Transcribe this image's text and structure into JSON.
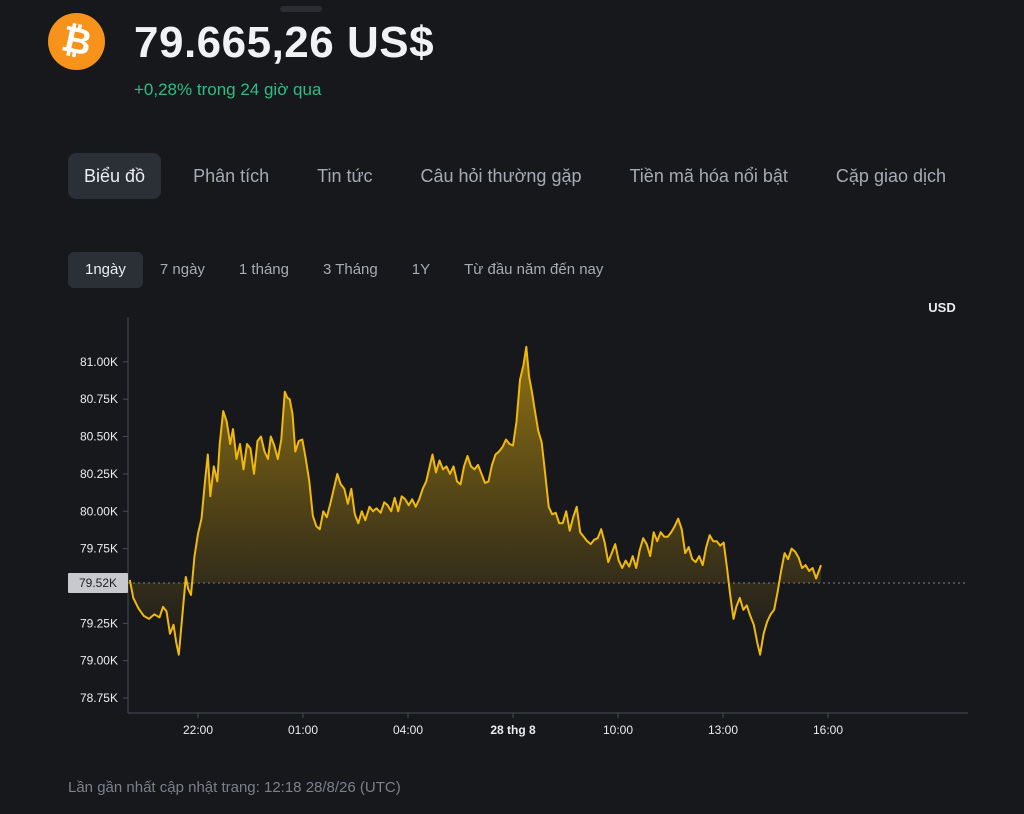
{
  "header": {
    "coin_symbol_glyph": "₿",
    "price": "79.665,26 US$",
    "change": "+0,28% trong 24 giờ qua"
  },
  "tabs": [
    {
      "label": "Biểu đồ",
      "active": true
    },
    {
      "label": "Phân tích",
      "active": false
    },
    {
      "label": "Tin tức",
      "active": false
    },
    {
      "label": "Câu hỏi thường gặp",
      "active": false
    },
    {
      "label": "Tiền mã hóa nổi bật",
      "active": false
    },
    {
      "label": "Cặp giao dịch",
      "active": false
    }
  ],
  "ranges": [
    {
      "label": "1ngày",
      "active": true
    },
    {
      "label": "7 ngày",
      "active": false
    },
    {
      "label": "1 tháng",
      "active": false
    },
    {
      "label": "3 Tháng",
      "active": false
    },
    {
      "label": "1Y",
      "active": false
    },
    {
      "label": "Từ đầu năm đến nay",
      "active": false
    }
  ],
  "chart_data": {
    "type": "area",
    "currency_label": "USD",
    "y_ticks": [
      {
        "value": 81000,
        "label": "81.00K"
      },
      {
        "value": 80750,
        "label": "80.75K"
      },
      {
        "value": 80500,
        "label": "80.50K"
      },
      {
        "value": 80250,
        "label": "80.25K"
      },
      {
        "value": 80000,
        "label": "80.00K"
      },
      {
        "value": 79750,
        "label": "79.75K"
      },
      {
        "value": 79250,
        "label": "79.25K"
      },
      {
        "value": 79000,
        "label": "79.00K"
      },
      {
        "value": 78750,
        "label": "78.75K"
      }
    ],
    "ylim": [
      78650,
      81300
    ],
    "xlim": [
      0,
      24
    ],
    "x_ticks": [
      {
        "hour": 2,
        "label": "22:00",
        "bold": false
      },
      {
        "hour": 5,
        "label": "01:00",
        "bold": false
      },
      {
        "hour": 8,
        "label": "04:00",
        "bold": false
      },
      {
        "hour": 11,
        "label": "28 thg 8",
        "bold": true
      },
      {
        "hour": 14,
        "label": "10:00",
        "bold": false
      },
      {
        "hour": 17,
        "label": "13:00",
        "bold": false
      },
      {
        "hour": 20,
        "label": "16:00",
        "bold": false
      }
    ],
    "baseline": {
      "value": 79520,
      "label": "79.52K"
    },
    "line_color": "#f0b90b",
    "points": [
      [
        0.05,
        79540
      ],
      [
        0.15,
        79420
      ],
      [
        0.3,
        79350
      ],
      [
        0.45,
        79300
      ],
      [
        0.6,
        79280
      ],
      [
        0.75,
        79310
      ],
      [
        0.9,
        79290
      ],
      [
        1.0,
        79360
      ],
      [
        1.1,
        79330
      ],
      [
        1.2,
        79180
      ],
      [
        1.3,
        79240
      ],
      [
        1.38,
        79120
      ],
      [
        1.45,
        79040
      ],
      [
        1.55,
        79300
      ],
      [
        1.65,
        79560
      ],
      [
        1.72,
        79480
      ],
      [
        1.8,
        79440
      ],
      [
        1.9,
        79700
      ],
      [
        2.0,
        79850
      ],
      [
        2.1,
        79950
      ],
      [
        2.2,
        80200
      ],
      [
        2.28,
        80380
      ],
      [
        2.35,
        80100
      ],
      [
        2.45,
        80300
      ],
      [
        2.55,
        80200
      ],
      [
        2.62,
        80450
      ],
      [
        2.72,
        80670
      ],
      [
        2.82,
        80600
      ],
      [
        2.92,
        80450
      ],
      [
        3.0,
        80550
      ],
      [
        3.1,
        80350
      ],
      [
        3.2,
        80450
      ],
      [
        3.3,
        80280
      ],
      [
        3.4,
        80450
      ],
      [
        3.5,
        80420
      ],
      [
        3.6,
        80250
      ],
      [
        3.7,
        80470
      ],
      [
        3.8,
        80500
      ],
      [
        3.9,
        80400
      ],
      [
        4.0,
        80350
      ],
      [
        4.08,
        80500
      ],
      [
        4.18,
        80440
      ],
      [
        4.28,
        80350
      ],
      [
        4.38,
        80480
      ],
      [
        4.48,
        80800
      ],
      [
        4.55,
        80760
      ],
      [
        4.62,
        80750
      ],
      [
        4.7,
        80650
      ],
      [
        4.78,
        80400
      ],
      [
        4.88,
        80470
      ],
      [
        4.98,
        80480
      ],
      [
        5.08,
        80350
      ],
      [
        5.18,
        80200
      ],
      [
        5.28,
        79970
      ],
      [
        5.38,
        79900
      ],
      [
        5.48,
        79880
      ],
      [
        5.58,
        80000
      ],
      [
        5.68,
        79960
      ],
      [
        5.78,
        80050
      ],
      [
        5.88,
        80150
      ],
      [
        5.98,
        80250
      ],
      [
        6.08,
        80180
      ],
      [
        6.18,
        80150
      ],
      [
        6.28,
        80050
      ],
      [
        6.38,
        80150
      ],
      [
        6.48,
        79980
      ],
      [
        6.58,
        79920
      ],
      [
        6.68,
        80000
      ],
      [
        6.78,
        79940
      ],
      [
        6.9,
        80030
      ],
      [
        7.0,
        80000
      ],
      [
        7.1,
        80020
      ],
      [
        7.22,
        79990
      ],
      [
        7.32,
        80060
      ],
      [
        7.42,
        80040
      ],
      [
        7.52,
        80000
      ],
      [
        7.62,
        80090
      ],
      [
        7.72,
        80000
      ],
      [
        7.82,
        80100
      ],
      [
        7.92,
        80080
      ],
      [
        8.02,
        80040
      ],
      [
        8.12,
        80080
      ],
      [
        8.22,
        80030
      ],
      [
        8.32,
        80080
      ],
      [
        8.42,
        80150
      ],
      [
        8.52,
        80200
      ],
      [
        8.62,
        80300
      ],
      [
        8.7,
        80380
      ],
      [
        8.8,
        80260
      ],
      [
        8.9,
        80340
      ],
      [
        9.0,
        80280
      ],
      [
        9.1,
        80300
      ],
      [
        9.2,
        80250
      ],
      [
        9.3,
        80300
      ],
      [
        9.4,
        80200
      ],
      [
        9.5,
        80180
      ],
      [
        9.6,
        80300
      ],
      [
        9.7,
        80370
      ],
      [
        9.8,
        80300
      ],
      [
        9.9,
        80280
      ],
      [
        10.0,
        80310
      ],
      [
        10.1,
        80250
      ],
      [
        10.2,
        80190
      ],
      [
        10.3,
        80200
      ],
      [
        10.4,
        80310
      ],
      [
        10.5,
        80380
      ],
      [
        10.6,
        80400
      ],
      [
        10.7,
        80430
      ],
      [
        10.8,
        80480
      ],
      [
        10.9,
        80450
      ],
      [
        11.0,
        80440
      ],
      [
        11.1,
        80600
      ],
      [
        11.2,
        80880
      ],
      [
        11.3,
        80980
      ],
      [
        11.38,
        81100
      ],
      [
        11.46,
        80900
      ],
      [
        11.54,
        80800
      ],
      [
        11.62,
        80680
      ],
      [
        11.72,
        80540
      ],
      [
        11.82,
        80460
      ],
      [
        11.92,
        80250
      ],
      [
        12.02,
        80030
      ],
      [
        12.12,
        79980
      ],
      [
        12.22,
        79990
      ],
      [
        12.32,
        79920
      ],
      [
        12.42,
        79920
      ],
      [
        12.52,
        80000
      ],
      [
        12.62,
        79870
      ],
      [
        12.72,
        79960
      ],
      [
        12.82,
        80030
      ],
      [
        12.92,
        79860
      ],
      [
        13.02,
        79830
      ],
      [
        13.12,
        79800
      ],
      [
        13.22,
        79780
      ],
      [
        13.32,
        79810
      ],
      [
        13.42,
        79820
      ],
      [
        13.52,
        79880
      ],
      [
        13.62,
        79790
      ],
      [
        13.72,
        79660
      ],
      [
        13.82,
        79720
      ],
      [
        13.92,
        79780
      ],
      [
        14.02,
        79670
      ],
      [
        14.12,
        79620
      ],
      [
        14.22,
        79670
      ],
      [
        14.32,
        79630
      ],
      [
        14.42,
        79700
      ],
      [
        14.52,
        79620
      ],
      [
        14.62,
        79740
      ],
      [
        14.72,
        79820
      ],
      [
        14.82,
        79780
      ],
      [
        14.92,
        79700
      ],
      [
        15.02,
        79860
      ],
      [
        15.12,
        79800
      ],
      [
        15.22,
        79860
      ],
      [
        15.32,
        79830
      ],
      [
        15.42,
        79830
      ],
      [
        15.52,
        79860
      ],
      [
        15.62,
        79900
      ],
      [
        15.72,
        79950
      ],
      [
        15.82,
        79880
      ],
      [
        15.92,
        79720
      ],
      [
        16.02,
        79760
      ],
      [
        16.12,
        79680
      ],
      [
        16.22,
        79660
      ],
      [
        16.32,
        79700
      ],
      [
        16.42,
        79640
      ],
      [
        16.52,
        79760
      ],
      [
        16.62,
        79840
      ],
      [
        16.72,
        79800
      ],
      [
        16.82,
        79800
      ],
      [
        16.92,
        79770
      ],
      [
        17.02,
        79790
      ],
      [
        17.12,
        79610
      ],
      [
        17.2,
        79450
      ],
      [
        17.3,
        79280
      ],
      [
        17.38,
        79360
      ],
      [
        17.48,
        79420
      ],
      [
        17.58,
        79340
      ],
      [
        17.68,
        79370
      ],
      [
        17.78,
        79300
      ],
      [
        17.88,
        79240
      ],
      [
        17.98,
        79120
      ],
      [
        18.06,
        79040
      ],
      [
        18.16,
        79180
      ],
      [
        18.26,
        79260
      ],
      [
        18.36,
        79310
      ],
      [
        18.46,
        79340
      ],
      [
        18.56,
        79460
      ],
      [
        18.66,
        79600
      ],
      [
        18.76,
        79720
      ],
      [
        18.86,
        79680
      ],
      [
        18.96,
        79750
      ],
      [
        19.06,
        79730
      ],
      [
        19.16,
        79690
      ],
      [
        19.26,
        79620
      ],
      [
        19.36,
        79640
      ],
      [
        19.46,
        79600
      ],
      [
        19.56,
        79620
      ],
      [
        19.66,
        79550
      ],
      [
        19.8,
        79640
      ]
    ]
  },
  "footer": {
    "last_updated": "Lần gần nhất cập nhật trang: 12:18 28/8/26 (UTC)"
  }
}
